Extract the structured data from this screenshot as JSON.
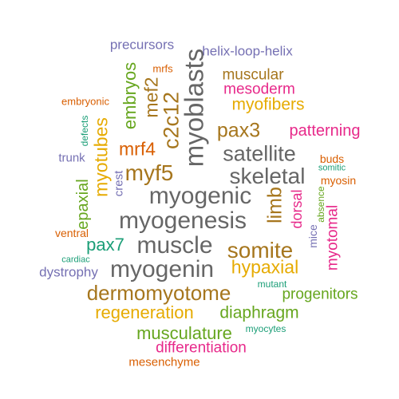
{
  "words": [
    {
      "text": "precursors",
      "color": "#7570b3"
    },
    {
      "text": "helix-loop-helix",
      "color": "#7570b3"
    },
    {
      "text": "mrfs",
      "color": "#d95f02"
    },
    {
      "text": "embryos",
      "color": "#66a61e"
    },
    {
      "text": "muscular",
      "color": "#a6761d"
    },
    {
      "text": "mesoderm",
      "color": "#e7298a"
    },
    {
      "text": "embryonic",
      "color": "#d95f02"
    },
    {
      "text": "mef2",
      "color": "#a6761d"
    },
    {
      "text": "myoblasts",
      "color": "#666666"
    },
    {
      "text": "myofibers",
      "color": "#e6ab02"
    },
    {
      "text": "c2c12",
      "color": "#a6761d"
    },
    {
      "text": "defects",
      "color": "#1b9e77"
    },
    {
      "text": "pax3",
      "color": "#a6761d"
    },
    {
      "text": "patterning",
      "color": "#e7298a"
    },
    {
      "text": "myotubes",
      "color": "#e6ab02"
    },
    {
      "text": "mrf4",
      "color": "#d95f02"
    },
    {
      "text": "satellite",
      "color": "#666666"
    },
    {
      "text": "trunk",
      "color": "#7570b3"
    },
    {
      "text": "crest",
      "color": "#7570b3"
    },
    {
      "text": "myf5",
      "color": "#a6761d"
    },
    {
      "text": "buds",
      "color": "#d95f02"
    },
    {
      "text": "somitic",
      "color": "#1b9e77"
    },
    {
      "text": "skeletal",
      "color": "#666666"
    },
    {
      "text": "myosin",
      "color": "#d95f02"
    },
    {
      "text": "epaxial",
      "color": "#66a61e"
    },
    {
      "text": "myogenic",
      "color": "#666666"
    },
    {
      "text": "limb",
      "color": "#a6761d"
    },
    {
      "text": "dorsal",
      "color": "#e7298a"
    },
    {
      "text": "absence",
      "color": "#66a61e"
    },
    {
      "text": "myotomal",
      "color": "#e7298a"
    },
    {
      "text": "myogenesis",
      "color": "#666666"
    },
    {
      "text": "ventral",
      "color": "#d95f02"
    },
    {
      "text": "mice",
      "color": "#7570b3"
    },
    {
      "text": "pax7",
      "color": "#1b9e77"
    },
    {
      "text": "muscle",
      "color": "#666666"
    },
    {
      "text": "somite",
      "color": "#a6761d"
    },
    {
      "text": "cardiac",
      "color": "#1b9e77"
    },
    {
      "text": "hypaxial",
      "color": "#e6ab02"
    },
    {
      "text": "myogenin",
      "color": "#666666"
    },
    {
      "text": "dystrophy",
      "color": "#7570b3"
    },
    {
      "text": "dermomyotome",
      "color": "#a6761d"
    },
    {
      "text": "mutant",
      "color": "#1b9e77"
    },
    {
      "text": "progenitors",
      "color": "#66a61e"
    },
    {
      "text": "regeneration",
      "color": "#e6ab02"
    },
    {
      "text": "diaphragm",
      "color": "#66a61e"
    },
    {
      "text": "musculature",
      "color": "#66a61e"
    },
    {
      "text": "myocytes",
      "color": "#1b9e77"
    },
    {
      "text": "differentiation",
      "color": "#e7298a"
    },
    {
      "text": "mesenchyme",
      "color": "#d95f02"
    }
  ]
}
